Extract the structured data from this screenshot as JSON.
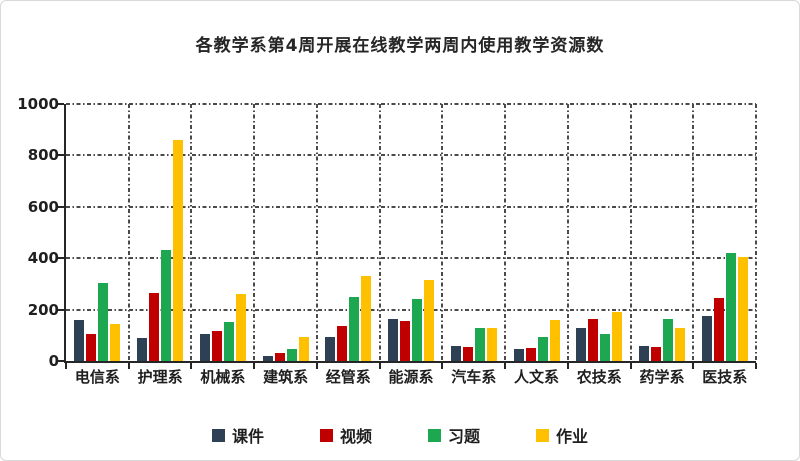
{
  "chart_data": {
    "type": "bar",
    "title": "各教学系第4周开展在线教学两周内使用教学资源数",
    "categories": [
      "电信系",
      "护理系",
      "机械系",
      "建筑系",
      "经管系",
      "能源系",
      "汽车系",
      "人文系",
      "农技系",
      "药学系",
      "医技系"
    ],
    "series": [
      {
        "name": "课件",
        "color": "#2E4053",
        "values": [
          160,
          90,
          105,
          20,
          95,
          165,
          60,
          45,
          130,
          60,
          175
        ]
      },
      {
        "name": "视频",
        "color": "#C00000",
        "values": [
          105,
          265,
          115,
          30,
          135,
          155,
          55,
          50,
          165,
          55,
          245
        ]
      },
      {
        "name": "习题",
        "color": "#1CA750",
        "values": [
          305,
          430,
          150,
          45,
          250,
          240,
          130,
          95,
          105,
          165,
          420
        ]
      },
      {
        "name": "作业",
        "color": "#FFC000",
        "values": [
          145,
          860,
          260,
          95,
          330,
          315,
          130,
          160,
          190,
          130,
          405
        ]
      }
    ],
    "xlabel": "",
    "ylabel": "",
    "ylim": [
      0,
      1000
    ],
    "yticks": [
      0,
      200,
      400,
      600,
      800,
      1000
    ],
    "grid": "dash-dot horizontal and vertical category separators",
    "legend_position": "bottom-center",
    "axis_color": "#262626",
    "gridline_color": "#4a4a4a"
  }
}
